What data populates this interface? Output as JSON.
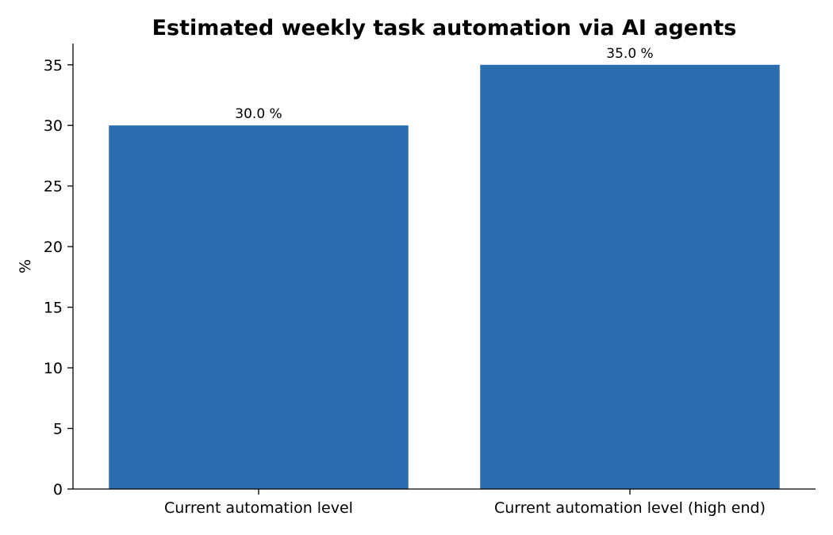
{
  "chart_data": {
    "type": "bar",
    "title": "Estimated weekly task automation via AI agents",
    "xlabel": "",
    "ylabel": "%",
    "categories": [
      "Current automation level",
      "Current automation level (high end)"
    ],
    "values": [
      30.0,
      35.0
    ],
    "data_labels": [
      "30.0 %",
      "35.0 %"
    ],
    "ylim": [
      0,
      36.75
    ],
    "yticks": [
      0,
      5,
      10,
      15,
      20,
      25,
      30,
      35
    ],
    "bar_color": "#2c6db0",
    "grid": false,
    "legend": "none"
  }
}
